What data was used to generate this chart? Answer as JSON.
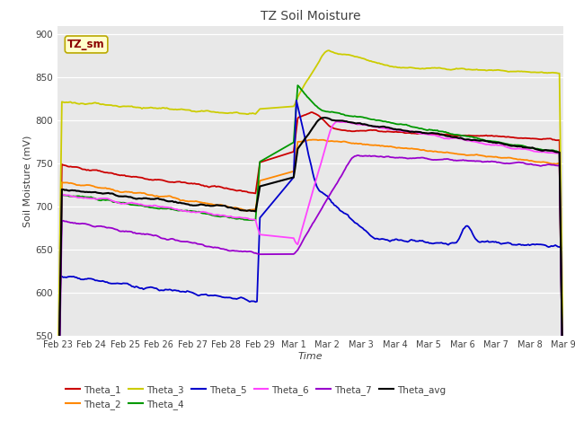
{
  "title": "TZ Soil Moisture",
  "xlabel": "Time",
  "ylabel": "Soil Moisture (mV)",
  "ylim": [
    550,
    910
  ],
  "yticks": [
    550,
    600,
    650,
    700,
    750,
    800,
    850,
    900
  ],
  "bg_color": "#e8e8e8",
  "fig_color": "#ffffff",
  "label_color": "#404040",
  "annotation_text": "TZ_sm",
  "annotation_color": "#8b0000",
  "annotation_bg": "#ffffcc",
  "series_colors": {
    "Theta_1": "#cc0000",
    "Theta_2": "#ff8800",
    "Theta_3": "#cccc00",
    "Theta_4": "#009900",
    "Theta_5": "#0000cc",
    "Theta_6": "#ff44ff",
    "Theta_7": "#9900cc",
    "Theta_avg": "#000000"
  },
  "xtick_labels": [
    "Feb 23",
    "Feb 24",
    "Feb 25",
    "Feb 26",
    "Feb 27",
    "Feb 28",
    "Feb 29",
    "Mar 1",
    "Mar 2",
    "Mar 3",
    "Mar 4",
    "Mar 5",
    "Mar 6",
    "Mar 7",
    "Mar 8",
    "Mar 9"
  ],
  "xtick_positions": [
    0,
    1,
    2,
    3,
    4,
    5,
    6,
    7,
    8,
    9,
    10,
    11,
    12,
    13,
    14,
    15
  ]
}
